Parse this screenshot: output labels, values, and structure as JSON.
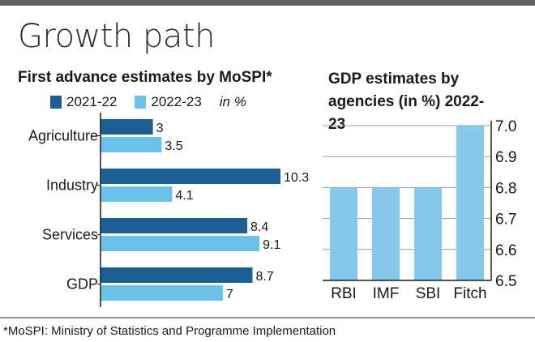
{
  "title": "Growth path",
  "footnote": "*MoSPI: Ministry of Statistics and Programme Implementation",
  "colors": {
    "dark": "#1b5f95",
    "light": "#6cc1e8",
    "right_bar": "#86c9ea",
    "grid": "#9d9d9d"
  },
  "chart_data": [
    {
      "type": "bar",
      "orientation": "horizontal",
      "title": "First advance estimates by MoSPI*",
      "unit_label": "in %",
      "categories": [
        "Agriculture",
        "Industry",
        "Services",
        "GDP"
      ],
      "series": [
        {
          "name": "2021-22",
          "values": [
            3,
            10.3,
            8.4,
            8.7
          ]
        },
        {
          "name": "2022-23",
          "values": [
            3.5,
            4.1,
            9.1,
            7
          ]
        }
      ],
      "xlim": [
        0,
        10.3
      ],
      "grid": false
    },
    {
      "type": "bar",
      "title": "GDP estimates by agencies (in %) 2022-23",
      "categories": [
        "RBI",
        "IMF",
        "SBI",
        "Fitch"
      ],
      "values": [
        6.8,
        6.8,
        6.8,
        7.0
      ],
      "ylim": [
        6.5,
        7.0
      ],
      "yticks": [
        "6.5",
        "6.6",
        "6.7",
        "6.8",
        "6.9",
        "7.0"
      ],
      "y_axis_position": "right",
      "grid": true
    }
  ]
}
